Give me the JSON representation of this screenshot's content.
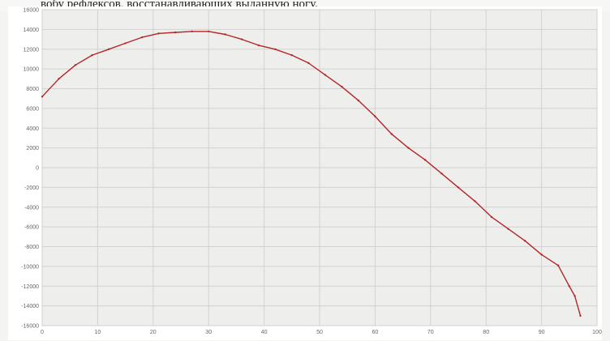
{
  "caption": "вобу рефлексов, восстанавливающих выданную ногу.",
  "colors": {
    "line": "#b3262a",
    "grid": "#d2d2d2",
    "plot_bg": "#eeeeec",
    "border": "#9a9a9a"
  },
  "chart_data": {
    "type": "line",
    "title": "",
    "xlabel": "",
    "ylabel": "",
    "xlim": [
      0,
      100
    ],
    "ylim": [
      -16000,
      16000
    ],
    "grid": true,
    "legend": "none",
    "x_ticks": [
      0,
      10,
      20,
      30,
      40,
      50,
      60,
      70,
      80,
      90,
      100
    ],
    "y_ticks": [
      16000,
      14000,
      12000,
      10000,
      8000,
      6000,
      4000,
      2000,
      0,
      -2000,
      -4000,
      -6000,
      -8000,
      -10000,
      -12000,
      -14000,
      -16000
    ],
    "series": [
      {
        "values": [
          [
            0,
            7200
          ],
          [
            3,
            9000
          ],
          [
            6,
            10400
          ],
          [
            9,
            11400
          ],
          [
            12,
            12000
          ],
          [
            15,
            12600
          ],
          [
            18,
            13200
          ],
          [
            21,
            13600
          ],
          [
            24,
            13700
          ],
          [
            27,
            13800
          ],
          [
            30,
            13800
          ],
          [
            33,
            13500
          ],
          [
            36,
            13000
          ],
          [
            39,
            12400
          ],
          [
            42,
            12000
          ],
          [
            45,
            11400
          ],
          [
            48,
            10600
          ],
          [
            51,
            9400
          ],
          [
            54,
            8200
          ],
          [
            57,
            6800
          ],
          [
            60,
            5200
          ],
          [
            63,
            3400
          ],
          [
            66,
            2000
          ],
          [
            69,
            800
          ],
          [
            72,
            -600
          ],
          [
            75,
            -2000
          ],
          [
            78,
            -3400
          ],
          [
            81,
            -5000
          ],
          [
            84,
            -6200
          ],
          [
            87,
            -7400
          ],
          [
            90,
            -8800
          ],
          [
            93,
            -9900
          ],
          [
            95,
            -12000
          ],
          [
            96,
            -13000
          ],
          [
            97,
            -15000
          ]
        ]
      }
    ]
  }
}
